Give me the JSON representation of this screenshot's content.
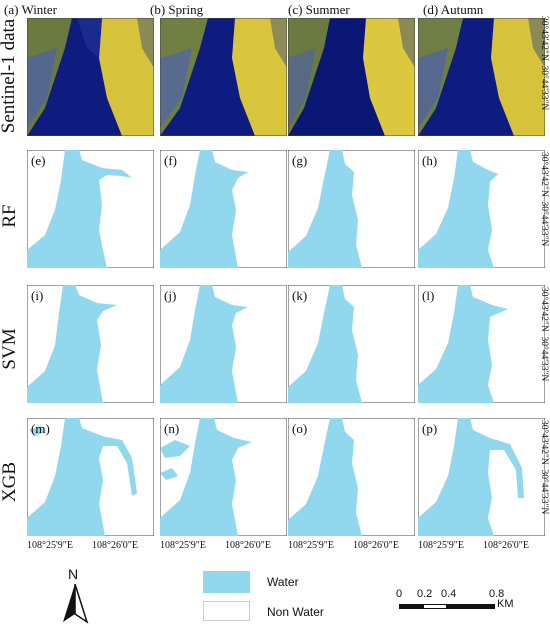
{
  "seasons": [
    "(a) Winter",
    "(b) Spring",
    "(c) Summer",
    "(d) Autumn"
  ],
  "row_labels": [
    "Sentinel-1 data",
    "RF",
    "SVM",
    "XGB"
  ],
  "panel_labels": {
    "rf": [
      "(e)",
      "(f)",
      "(g)",
      "(h)"
    ],
    "svm": [
      "(i)",
      "(j)",
      "(k)",
      "(l)"
    ],
    "xgb": [
      "(m)",
      "(n)",
      "(o)",
      "(p)"
    ]
  },
  "lat_labels": {
    "upper": "30°44'33\"N",
    "lower": "30°43'42\"N"
  },
  "lon_labels": {
    "left": "108°25'9\"E",
    "right": "108°26'0\"E"
  },
  "north": "N",
  "legend": {
    "water": "Water",
    "non_water": "Non Water",
    "water_color": "#91d8ee",
    "non_water_color": "#ffffff"
  },
  "scalebar": {
    "ticks": [
      "0",
      "0.2",
      "0.4",
      "0.8"
    ],
    "unit": "KM"
  }
}
